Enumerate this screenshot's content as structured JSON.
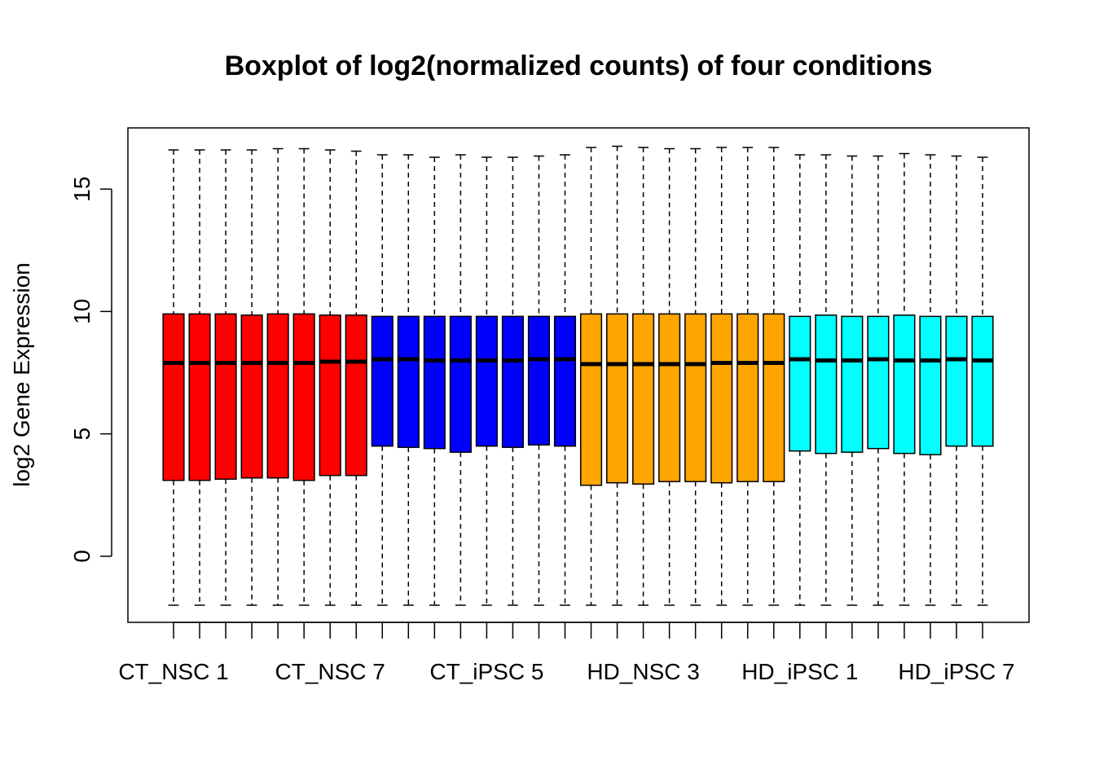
{
  "chart_data": {
    "type": "boxplot",
    "title": "Boxplot of log2(normalized counts) of four conditions",
    "xlabel": "",
    "ylabel": "log2 Gene Expression",
    "ylim": [
      -2.7,
      17.5
    ],
    "yticks": [
      0,
      5,
      10,
      15
    ],
    "grid": false,
    "x_tick_labels": [
      {
        "label": "CT_NSC 1",
        "index": 1
      },
      {
        "label": "CT_NSC 7",
        "index": 7
      },
      {
        "label": "CT_iPSC 5",
        "index": 13
      },
      {
        "label": "HD_NSC 3",
        "index": 19
      },
      {
        "label": "HD_iPSC 1",
        "index": 25
      },
      {
        "label": "HD_iPSC 7",
        "index": 31
      }
    ],
    "groups": [
      {
        "color": "#FF0000",
        "boxes": [
          {
            "min": -2.0,
            "q1": 3.1,
            "median": 7.9,
            "q3": 9.9,
            "max": 16.6
          },
          {
            "min": -2.0,
            "q1": 3.1,
            "median": 7.9,
            "q3": 9.9,
            "max": 16.6
          },
          {
            "min": -2.0,
            "q1": 3.15,
            "median": 7.9,
            "q3": 9.9,
            "max": 16.6
          },
          {
            "min": -2.0,
            "q1": 3.2,
            "median": 7.9,
            "q3": 9.85,
            "max": 16.6
          },
          {
            "min": -2.0,
            "q1": 3.2,
            "median": 7.9,
            "q3": 9.9,
            "max": 16.65
          },
          {
            "min": -2.0,
            "q1": 3.1,
            "median": 7.9,
            "q3": 9.9,
            "max": 16.65
          },
          {
            "min": -2.0,
            "q1": 3.3,
            "median": 7.95,
            "q3": 9.85,
            "max": 16.6
          },
          {
            "min": -2.0,
            "q1": 3.3,
            "median": 7.95,
            "q3": 9.85,
            "max": 16.55
          }
        ]
      },
      {
        "color": "#0000FF",
        "boxes": [
          {
            "min": -2.0,
            "q1": 4.5,
            "median": 8.05,
            "q3": 9.8,
            "max": 16.4
          },
          {
            "min": -2.0,
            "q1": 4.45,
            "median": 8.05,
            "q3": 9.8,
            "max": 16.4
          },
          {
            "min": -2.0,
            "q1": 4.4,
            "median": 8.0,
            "q3": 9.8,
            "max": 16.3
          },
          {
            "min": -2.0,
            "q1": 4.25,
            "median": 8.0,
            "q3": 9.8,
            "max": 16.4
          },
          {
            "min": -2.0,
            "q1": 4.5,
            "median": 8.0,
            "q3": 9.8,
            "max": 16.3
          },
          {
            "min": -2.0,
            "q1": 4.45,
            "median": 8.0,
            "q3": 9.8,
            "max": 16.3
          },
          {
            "min": -2.0,
            "q1": 4.55,
            "median": 8.05,
            "q3": 9.8,
            "max": 16.35
          },
          {
            "min": -2.0,
            "q1": 4.5,
            "median": 8.05,
            "q3": 9.8,
            "max": 16.4
          }
        ]
      },
      {
        "color": "#FFA500",
        "boxes": [
          {
            "min": -2.0,
            "q1": 2.9,
            "median": 7.85,
            "q3": 9.9,
            "max": 16.7
          },
          {
            "min": -2.0,
            "q1": 3.0,
            "median": 7.85,
            "q3": 9.9,
            "max": 16.75
          },
          {
            "min": -2.0,
            "q1": 2.95,
            "median": 7.85,
            "q3": 9.9,
            "max": 16.7
          },
          {
            "min": -2.0,
            "q1": 3.05,
            "median": 7.85,
            "q3": 9.9,
            "max": 16.65
          },
          {
            "min": -2.0,
            "q1": 3.05,
            "median": 7.85,
            "q3": 9.9,
            "max": 16.65
          },
          {
            "min": -2.0,
            "q1": 3.0,
            "median": 7.9,
            "q3": 9.9,
            "max": 16.7
          },
          {
            "min": -2.0,
            "q1": 3.05,
            "median": 7.9,
            "q3": 9.9,
            "max": 16.7
          },
          {
            "min": -2.0,
            "q1": 3.05,
            "median": 7.9,
            "q3": 9.9,
            "max": 16.7
          }
        ]
      },
      {
        "color": "#00FFFF",
        "boxes": [
          {
            "min": -2.0,
            "q1": 4.3,
            "median": 8.05,
            "q3": 9.8,
            "max": 16.4
          },
          {
            "min": -2.0,
            "q1": 4.2,
            "median": 8.0,
            "q3": 9.85,
            "max": 16.4
          },
          {
            "min": -2.0,
            "q1": 4.25,
            "median": 8.0,
            "q3": 9.8,
            "max": 16.35
          },
          {
            "min": -2.0,
            "q1": 4.4,
            "median": 8.05,
            "q3": 9.8,
            "max": 16.35
          },
          {
            "min": -2.0,
            "q1": 4.2,
            "median": 8.0,
            "q3": 9.85,
            "max": 16.45
          },
          {
            "min": -2.0,
            "q1": 4.15,
            "median": 8.0,
            "q3": 9.8,
            "max": 16.4
          },
          {
            "min": -2.0,
            "q1": 4.5,
            "median": 8.05,
            "q3": 9.8,
            "max": 16.35
          },
          {
            "min": -2.0,
            "q1": 4.5,
            "median": 8.0,
            "q3": 9.8,
            "max": 16.3
          }
        ]
      }
    ]
  }
}
